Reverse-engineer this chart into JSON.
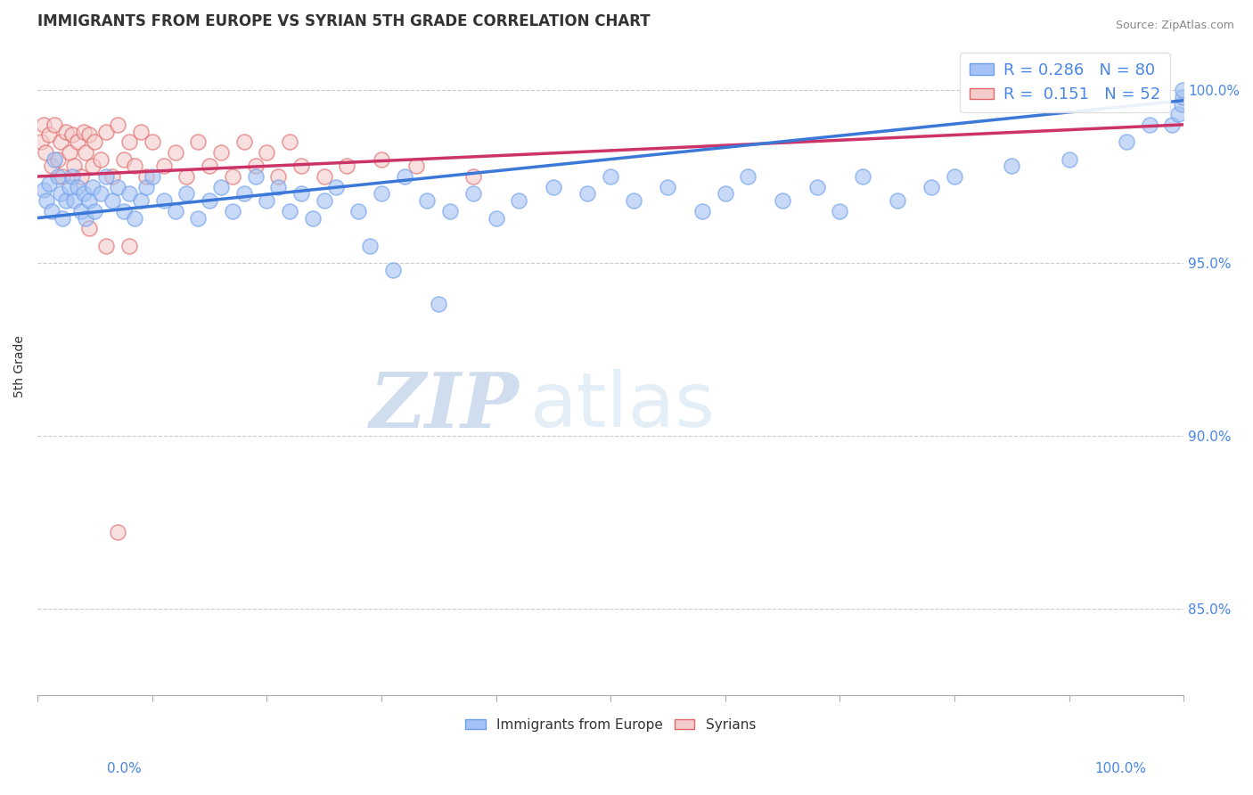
{
  "title": "IMMIGRANTS FROM EUROPE VS SYRIAN 5TH GRADE CORRELATION CHART",
  "source": "Source: ZipAtlas.com",
  "ylabel": "5th Grade",
  "xlim": [
    0.0,
    1.0
  ],
  "ylim": [
    0.825,
    1.015
  ],
  "blue_color": "#a4c2f4",
  "pink_color": "#f4cccc",
  "blue_edge_color": "#6d9eeb",
  "pink_edge_color": "#e06666",
  "blue_line_color": "#3c78d8",
  "pink_line_color": "#cc3366",
  "legend_R_blue": "0.286",
  "legend_N_blue": "80",
  "legend_R_pink": "0.151",
  "legend_N_pink": "52",
  "watermark_zip": "ZIP",
  "watermark_atlas": "atlas",
  "yticks": [
    0.85,
    0.9,
    0.95,
    1.0
  ],
  "ytick_labels": [
    "85.0%",
    "90.0%",
    "95.0%",
    "100.0%"
  ],
  "blue_scatter_x": [
    0.005,
    0.008,
    0.01,
    0.012,
    0.015,
    0.018,
    0.02,
    0.022,
    0.025,
    0.028,
    0.03,
    0.032,
    0.035,
    0.038,
    0.04,
    0.042,
    0.045,
    0.048,
    0.05,
    0.055,
    0.06,
    0.065,
    0.07,
    0.075,
    0.08,
    0.085,
    0.09,
    0.095,
    0.1,
    0.11,
    0.12,
    0.13,
    0.14,
    0.15,
    0.16,
    0.17,
    0.18,
    0.19,
    0.2,
    0.21,
    0.22,
    0.23,
    0.24,
    0.25,
    0.26,
    0.28,
    0.3,
    0.32,
    0.34,
    0.36,
    0.38,
    0.4,
    0.42,
    0.45,
    0.48,
    0.5,
    0.52,
    0.55,
    0.58,
    0.6,
    0.62,
    0.65,
    0.68,
    0.7,
    0.72,
    0.75,
    0.78,
    0.8,
    0.85,
    0.9,
    0.95,
    0.97,
    0.99,
    0.995,
    0.998,
    0.999,
    0.999,
    0.35,
    0.31,
    0.29
  ],
  "blue_scatter_y": [
    0.971,
    0.968,
    0.973,
    0.965,
    0.98,
    0.975,
    0.97,
    0.963,
    0.968,
    0.972,
    0.975,
    0.968,
    0.972,
    0.965,
    0.97,
    0.963,
    0.968,
    0.972,
    0.965,
    0.97,
    0.975,
    0.968,
    0.972,
    0.965,
    0.97,
    0.963,
    0.968,
    0.972,
    0.975,
    0.968,
    0.965,
    0.97,
    0.963,
    0.968,
    0.972,
    0.965,
    0.97,
    0.975,
    0.968,
    0.972,
    0.965,
    0.97,
    0.963,
    0.968,
    0.972,
    0.965,
    0.97,
    0.975,
    0.968,
    0.965,
    0.97,
    0.963,
    0.968,
    0.972,
    0.97,
    0.975,
    0.968,
    0.972,
    0.965,
    0.97,
    0.975,
    0.968,
    0.972,
    0.965,
    0.975,
    0.968,
    0.972,
    0.975,
    0.978,
    0.98,
    0.985,
    0.99,
    0.99,
    0.993,
    0.996,
    0.998,
    1.0,
    0.938,
    0.948,
    0.955
  ],
  "pink_scatter_x": [
    0.003,
    0.005,
    0.007,
    0.01,
    0.012,
    0.015,
    0.018,
    0.02,
    0.022,
    0.025,
    0.028,
    0.03,
    0.032,
    0.035,
    0.038,
    0.04,
    0.042,
    0.045,
    0.048,
    0.05,
    0.055,
    0.06,
    0.065,
    0.07,
    0.075,
    0.08,
    0.085,
    0.09,
    0.095,
    0.1,
    0.11,
    0.12,
    0.13,
    0.14,
    0.15,
    0.16,
    0.17,
    0.18,
    0.19,
    0.2,
    0.21,
    0.22,
    0.23,
    0.25,
    0.27,
    0.3,
    0.33,
    0.38,
    0.07,
    0.08,
    0.045,
    0.06
  ],
  "pink_scatter_y": [
    0.985,
    0.99,
    0.982,
    0.987,
    0.978,
    0.99,
    0.98,
    0.985,
    0.975,
    0.988,
    0.982,
    0.987,
    0.978,
    0.985,
    0.975,
    0.988,
    0.982,
    0.987,
    0.978,
    0.985,
    0.98,
    0.988,
    0.975,
    0.99,
    0.98,
    0.985,
    0.978,
    0.988,
    0.975,
    0.985,
    0.978,
    0.982,
    0.975,
    0.985,
    0.978,
    0.982,
    0.975,
    0.985,
    0.978,
    0.982,
    0.975,
    0.985,
    0.978,
    0.975,
    0.978,
    0.98,
    0.978,
    0.975,
    0.872,
    0.955,
    0.96,
    0.955
  ]
}
